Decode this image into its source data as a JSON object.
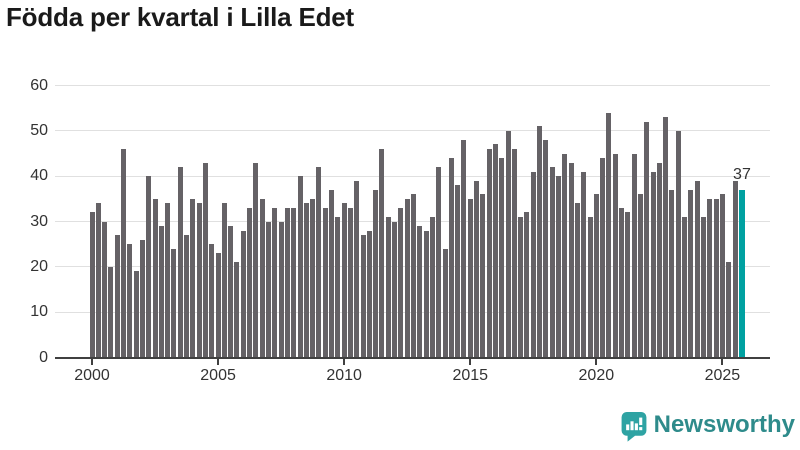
{
  "title": "Födda per kvartal i Lilla Edet",
  "footer": {
    "brand": "Newsworthy"
  },
  "colors": {
    "bar": "#656266",
    "highlight_bar": "#00a1a1",
    "gridline": "#e0e0e0",
    "axis": "#404040",
    "tick_text": "#333333",
    "title_text": "#1a1a1a",
    "brand_text": "#2e8b8b",
    "logo": "#2ea3a3"
  },
  "chart_data": {
    "type": "bar",
    "title": "Födda per kvartal i Lilla Edet",
    "xlabel": "",
    "ylabel": "",
    "frequency": "quarterly",
    "x_start": "2000-Q1",
    "values": [
      32,
      34,
      30,
      20,
      27,
      46,
      25,
      19,
      26,
      40,
      35,
      29,
      34,
      24,
      42,
      27,
      35,
      34,
      43,
      25,
      23,
      34,
      29,
      21,
      28,
      33,
      43,
      35,
      30,
      33,
      30,
      33,
      33,
      40,
      34,
      35,
      42,
      33,
      37,
      31,
      34,
      33,
      39,
      27,
      28,
      37,
      46,
      31,
      30,
      33,
      35,
      36,
      29,
      28,
      31,
      42,
      24,
      44,
      38,
      48,
      35,
      39,
      36,
      46,
      47,
      44,
      50,
      46,
      31,
      32,
      41,
      51,
      48,
      42,
      40,
      45,
      43,
      34,
      41,
      31,
      36,
      44,
      54,
      45,
      33,
      32,
      45,
      36,
      52,
      41,
      43,
      53,
      37,
      50,
      31,
      37,
      39,
      31,
      35,
      35,
      36,
      21,
      39,
      37
    ],
    "x_tick_labels": [
      "2000",
      "2005",
      "2010",
      "2015",
      "2020",
      "2025"
    ],
    "x_tick_every_n_bars": 20,
    "y_ticks": [
      0,
      10,
      20,
      30,
      40,
      50,
      60
    ],
    "ylim": [
      0,
      60
    ],
    "grid": "horizontal",
    "legend": "none",
    "highlight": {
      "index": 103,
      "value": 37,
      "label": "37"
    }
  }
}
